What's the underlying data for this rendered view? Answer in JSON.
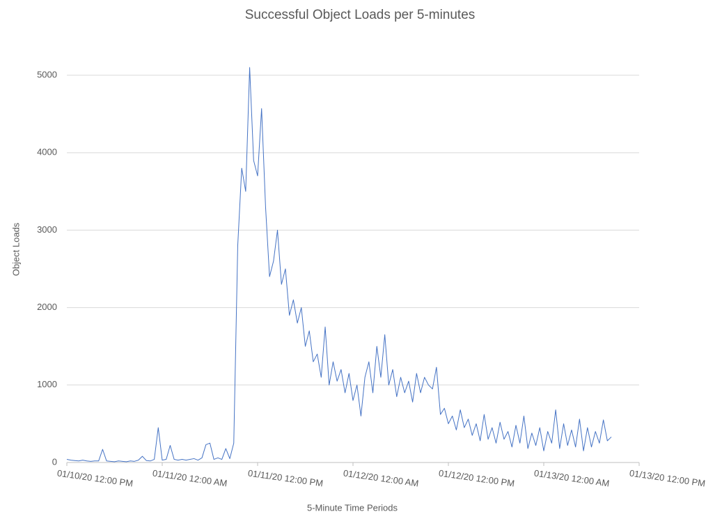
{
  "chart_data": {
    "type": "line",
    "title": "Successful Object Loads per 5-minutes",
    "x_label": "5-Minute Time Periods",
    "y_label": "Object Loads",
    "x": [
      "2020-01-10T12:00",
      "2020-01-10T12:30",
      "2020-01-10T13:00",
      "2020-01-10T13:30",
      "2020-01-10T14:00",
      "2020-01-10T14:30",
      "2020-01-10T15:00",
      "2020-01-10T15:30",
      "2020-01-10T16:00",
      "2020-01-10T16:30",
      "2020-01-10T17:00",
      "2020-01-10T17:30",
      "2020-01-10T18:00",
      "2020-01-10T18:30",
      "2020-01-10T19:00",
      "2020-01-10T19:30",
      "2020-01-10T20:00",
      "2020-01-10T20:30",
      "2020-01-10T21:00",
      "2020-01-10T21:30",
      "2020-01-10T22:00",
      "2020-01-10T22:30",
      "2020-01-10T23:00",
      "2020-01-10T23:30",
      "2020-01-11T00:00",
      "2020-01-11T00:30",
      "2020-01-11T01:00",
      "2020-01-11T01:30",
      "2020-01-11T02:00",
      "2020-01-11T02:30",
      "2020-01-11T03:00",
      "2020-01-11T03:30",
      "2020-01-11T04:00",
      "2020-01-11T04:30",
      "2020-01-11T05:00",
      "2020-01-11T05:30",
      "2020-01-11T06:00",
      "2020-01-11T06:30",
      "2020-01-11T07:00",
      "2020-01-11T07:30",
      "2020-01-11T08:00",
      "2020-01-11T08:30",
      "2020-01-11T09:00",
      "2020-01-11T09:30",
      "2020-01-11T10:00",
      "2020-01-11T10:30",
      "2020-01-11T11:00",
      "2020-01-11T11:30",
      "2020-01-11T12:00",
      "2020-01-11T12:30",
      "2020-01-11T13:00",
      "2020-01-11T13:30",
      "2020-01-11T14:00",
      "2020-01-11T14:30",
      "2020-01-11T15:00",
      "2020-01-11T15:30",
      "2020-01-11T16:00",
      "2020-01-11T16:30",
      "2020-01-11T17:00",
      "2020-01-11T17:30",
      "2020-01-11T18:00",
      "2020-01-11T18:30",
      "2020-01-11T19:00",
      "2020-01-11T19:30",
      "2020-01-11T20:00",
      "2020-01-11T20:30",
      "2020-01-11T21:00",
      "2020-01-11T21:30",
      "2020-01-11T22:00",
      "2020-01-11T22:30",
      "2020-01-11T23:00",
      "2020-01-11T23:30",
      "2020-01-12T00:00",
      "2020-01-12T00:30",
      "2020-01-12T01:00",
      "2020-01-12T01:30",
      "2020-01-12T02:00",
      "2020-01-12T02:30",
      "2020-01-12T03:00",
      "2020-01-12T03:30",
      "2020-01-12T04:00",
      "2020-01-12T04:30",
      "2020-01-12T05:00",
      "2020-01-12T05:30",
      "2020-01-12T06:00",
      "2020-01-12T06:30",
      "2020-01-12T07:00",
      "2020-01-12T07:30",
      "2020-01-12T08:00",
      "2020-01-12T08:30",
      "2020-01-12T09:00",
      "2020-01-12T09:30",
      "2020-01-12T10:00",
      "2020-01-12T10:30",
      "2020-01-12T11:00",
      "2020-01-12T11:30",
      "2020-01-12T12:00",
      "2020-01-12T12:30",
      "2020-01-12T13:00",
      "2020-01-12T13:30",
      "2020-01-12T14:00",
      "2020-01-12T14:30",
      "2020-01-12T15:00",
      "2020-01-12T15:30",
      "2020-01-12T16:00",
      "2020-01-12T16:30",
      "2020-01-12T17:00",
      "2020-01-12T17:30",
      "2020-01-12T18:00",
      "2020-01-12T18:30",
      "2020-01-12T19:00",
      "2020-01-12T19:30",
      "2020-01-12T20:00",
      "2020-01-12T20:30",
      "2020-01-12T21:00",
      "2020-01-12T21:30",
      "2020-01-12T22:00",
      "2020-01-12T22:30",
      "2020-01-12T23:00",
      "2020-01-12T23:30",
      "2020-01-13T00:00",
      "2020-01-13T00:30",
      "2020-01-13T01:00",
      "2020-01-13T01:30",
      "2020-01-13T02:00",
      "2020-01-13T02:30",
      "2020-01-13T03:00",
      "2020-01-13T03:30",
      "2020-01-13T04:00",
      "2020-01-13T04:30",
      "2020-01-13T05:00",
      "2020-01-13T05:30",
      "2020-01-13T06:00",
      "2020-01-13T06:30",
      "2020-01-13T07:00",
      "2020-01-13T07:30",
      "2020-01-13T08:00",
      "2020-01-13T08:30"
    ],
    "series": [
      {
        "name": "Object Loads",
        "color": "#4472c4",
        "values": [
          40,
          30,
          25,
          20,
          30,
          20,
          15,
          20,
          20,
          170,
          20,
          15,
          10,
          20,
          15,
          10,
          20,
          15,
          30,
          80,
          25,
          20,
          40,
          450,
          30,
          40,
          220,
          40,
          30,
          40,
          30,
          40,
          50,
          30,
          60,
          230,
          250,
          40,
          60,
          40,
          180,
          50,
          250,
          2800,
          3800,
          3500,
          5100,
          3900,
          3700,
          4570,
          3300,
          2400,
          2600,
          3000,
          2300,
          2500,
          1900,
          2100,
          1800,
          2000,
          1500,
          1700,
          1300,
          1400,
          1100,
          1750,
          1000,
          1300,
          1050,
          1200,
          900,
          1150,
          800,
          1000,
          600,
          1100,
          1300,
          900,
          1500,
          1100,
          1650,
          1000,
          1200,
          850,
          1100,
          900,
          1050,
          780,
          1150,
          900,
          1100,
          1000,
          950,
          1230,
          620,
          700,
          500,
          600,
          420,
          680,
          450,
          560,
          350,
          500,
          280,
          620,
          300,
          450,
          250,
          520,
          300,
          400,
          200,
          480,
          250,
          600,
          180,
          380,
          220,
          450,
          150,
          400,
          250,
          680,
          180,
          500,
          220,
          420,
          200,
          560,
          150,
          450,
          200,
          400,
          250,
          550,
          280,
          330
        ]
      }
    ],
    "xlim": [
      "2020-01-10T12:00",
      "2020-01-13T12:00"
    ],
    "xticks": [
      {
        "value": "2020-01-10T12:00",
        "label": "01/10/20 12:00 PM"
      },
      {
        "value": "2020-01-11T00:00",
        "label": "01/11/20 12:00 AM"
      },
      {
        "value": "2020-01-11T12:00",
        "label": "01/11/20 12:00 PM"
      },
      {
        "value": "2020-01-12T00:00",
        "label": "01/12/20 12:00 AM"
      },
      {
        "value": "2020-01-12T12:00",
        "label": "01/12/20 12:00 PM"
      },
      {
        "value": "2020-01-13T00:00",
        "label": "01/13/20 12:00 AM"
      },
      {
        "value": "2020-01-13T12:00",
        "label": "01/13/20 12:00 PM"
      }
    ],
    "ylim": [
      0,
      5000
    ],
    "yticks": [
      0,
      1000,
      2000,
      3000,
      4000,
      5000
    ],
    "grid": true
  }
}
